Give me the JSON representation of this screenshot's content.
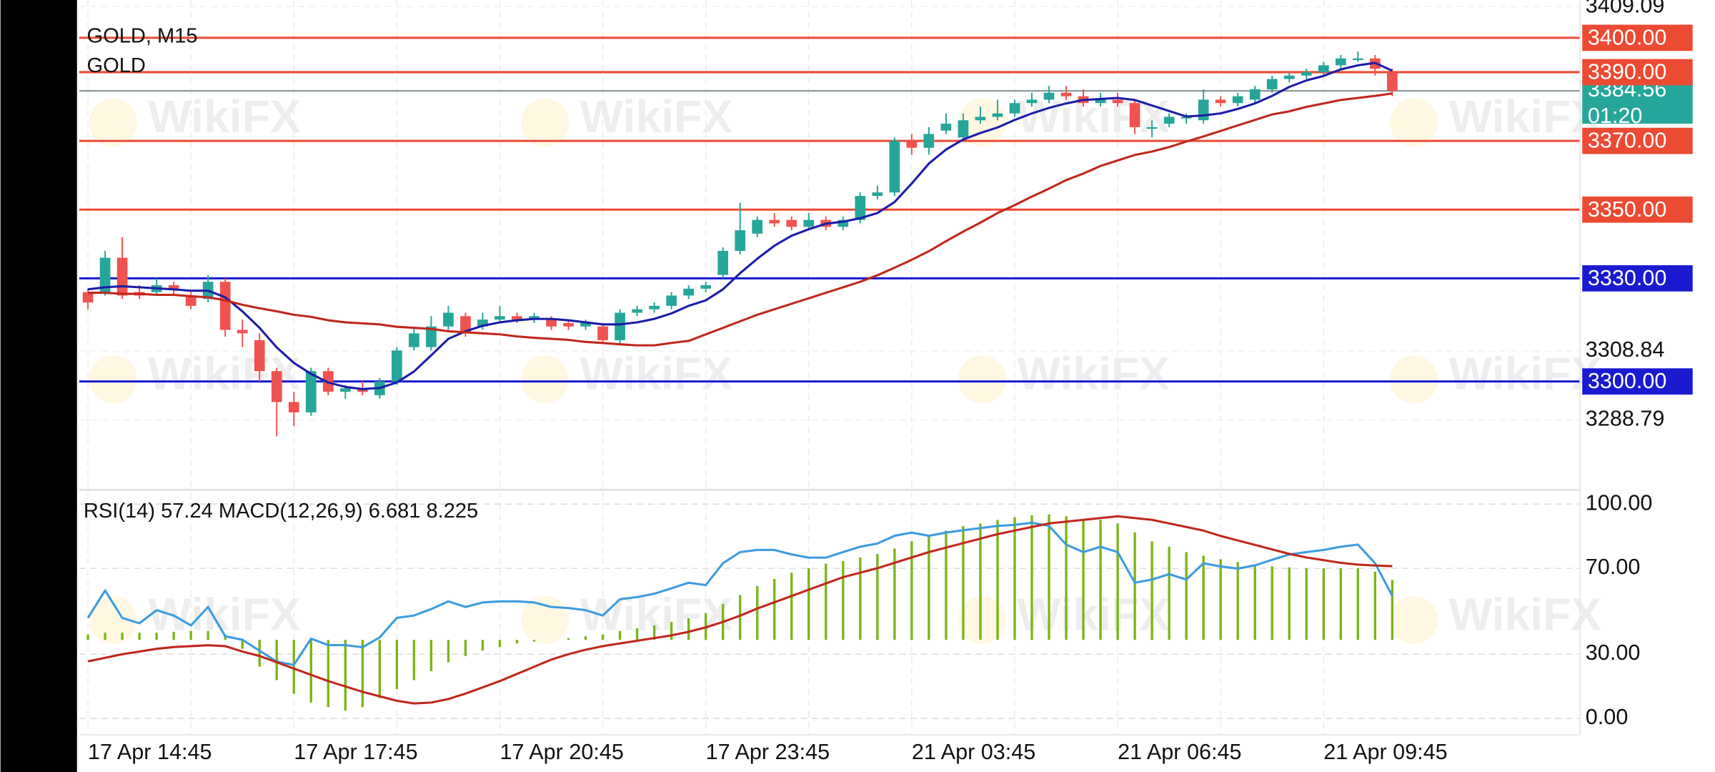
{
  "chart_data": [
    {
      "type": "candlestick",
      "title": "GOLD, M15",
      "subtitle": "GOLD",
      "watermark": "WikiFX",
      "categories": [
        "17 Apr 14:45",
        null,
        null,
        null,
        null,
        null,
        null,
        null,
        null,
        null,
        null,
        null,
        "17 Apr 17:45",
        null,
        null,
        null,
        null,
        null,
        null,
        null,
        null,
        null,
        null,
        null,
        "17 Apr 20:45",
        null,
        null,
        null,
        null,
        null,
        null,
        null,
        null,
        null,
        null,
        null,
        "17 Apr 23:45",
        null,
        null,
        null,
        null,
        null,
        null,
        null,
        null,
        null,
        null,
        null,
        "21 Apr 03:45",
        null,
        null,
        null,
        null,
        null,
        null,
        null,
        null,
        null,
        null,
        null,
        "21 Apr 06:45",
        null,
        null,
        null,
        null,
        null,
        null,
        null,
        null,
        null,
        null,
        null,
        "21 Apr 09:45",
        null,
        null,
        null,
        null
      ],
      "open": [
        3326,
        3326,
        3336,
        3326,
        3326,
        3328,
        3325,
        3324,
        3329,
        3315,
        3312,
        3303,
        3294,
        3291,
        3303,
        3297,
        3298,
        3296,
        3300,
        3310,
        3310,
        3316,
        3319,
        3316,
        3318,
        3319,
        3318,
        3318,
        3317,
        3316,
        3316,
        3312,
        3320,
        3321,
        3322,
        3325,
        3327,
        3331,
        3338,
        3343,
        3347,
        3347,
        3345,
        3347,
        3345,
        3347,
        3354,
        3355,
        3370,
        3368,
        3373,
        3371,
        3376,
        3377,
        3378,
        3381,
        3382,
        3384,
        3383,
        3381,
        3382,
        3381,
        3374,
        3375,
        3377,
        3376,
        3382,
        3381,
        3382,
        3385,
        3388,
        3389,
        3390,
        3392,
        3394,
        3394,
        3390
      ],
      "high": [
        3327,
        3338,
        3342,
        3328,
        3330,
        3329,
        3326,
        3331,
        3330,
        3318,
        3314,
        3304,
        3297,
        3304,
        3304,
        3299,
        3300,
        3301,
        3310,
        3316,
        3319,
        3322,
        3320,
        3320,
        3322,
        3320,
        3320,
        3319,
        3318,
        3318,
        3317,
        3321,
        3322,
        3323,
        3326,
        3328,
        3329,
        3339,
        3352,
        3348,
        3349,
        3348,
        3349,
        3348,
        3348,
        3355,
        3357,
        3371,
        3372,
        3374,
        3378,
        3378,
        3380,
        3382,
        3382,
        3384,
        3386,
        3386,
        3385,
        3384,
        3384,
        3382,
        3376,
        3378,
        3378,
        3385,
        3383,
        3384,
        3386,
        3389,
        3390,
        3391,
        3393,
        3395,
        3396,
        3395,
        3391
      ],
      "low": [
        3321,
        3325,
        3324,
        3324,
        3325,
        3325,
        3321,
        3323,
        3313,
        3310,
        3300,
        3284,
        3287,
        3290,
        3296,
        3295,
        3296,
        3295,
        3299,
        3309,
        3309,
        3315,
        3313,
        3315,
        3317,
        3317,
        3317,
        3315,
        3315,
        3315,
        3311,
        3311,
        3319,
        3320,
        3321,
        3324,
        3326,
        3330,
        3337,
        3342,
        3345,
        3344,
        3344,
        3344,
        3344,
        3346,
        3353,
        3354,
        3366,
        3366,
        3372,
        3370,
        3375,
        3376,
        3377,
        3380,
        3381,
        3382,
        3380,
        3380,
        3380,
        3372,
        3371,
        3374,
        3375,
        3375,
        3380,
        3380,
        3381,
        3384,
        3387,
        3388,
        3389,
        3391,
        3393,
        3389,
        3383
      ],
      "close": [
        3323,
        3336,
        3325,
        3325,
        3328,
        3327,
        3322,
        3329,
        3315,
        3314,
        3303,
        3294,
        3291,
        3303,
        3297,
        3298,
        3297,
        3300,
        3309,
        3314,
        3316,
        3320,
        3314,
        3318,
        3319,
        3318,
        3319,
        3316,
        3316,
        3317,
        3312,
        3320,
        3321,
        3322,
        3325,
        3327,
        3328,
        3338,
        3344,
        3347,
        3346,
        3345,
        3347,
        3345,
        3347,
        3354,
        3355,
        3370,
        3368,
        3372,
        3375,
        3376,
        3377,
        3378,
        3381,
        3382,
        3384,
        3383,
        3381,
        3382,
        3381,
        3374,
        3374,
        3377,
        3377,
        3382,
        3381,
        3383,
        3385,
        3388,
        3389,
        3390,
        3392,
        3394,
        3394,
        3391,
        3384.56
      ],
      "up_color": "#26a69a",
      "down_color": "#ef5350",
      "series": [
        {
          "type": "line",
          "color": "#1c1ca8",
          "values": [
            3326.8,
            3327.4,
            3327.7,
            3327.4,
            3327.1,
            3326.8,
            3326.4,
            3326.4,
            3324.5,
            3320.4,
            3315.6,
            3309.9,
            3305.4,
            3302.2,
            3299.7,
            3298.4,
            3297.8,
            3298.1,
            3299.7,
            3302.9,
            3307.6,
            3312.4,
            3314.6,
            3316.2,
            3317.2,
            3317.8,
            3318.2,
            3318.2,
            3317.8,
            3317.2,
            3316.6,
            3316.6,
            3317.2,
            3318.2,
            3319.8,
            3322.0,
            3323.6,
            3326.8,
            3331.5,
            3335.7,
            3339.5,
            3342.4,
            3344.3,
            3345.9,
            3346.5,
            3347.5,
            3349.0,
            3352.2,
            3357.6,
            3363.4,
            3367.5,
            3370.4,
            3372.3,
            3373.9,
            3376.1,
            3378.0,
            3379.6,
            3380.9,
            3381.9,
            3382.2,
            3382.5,
            3381.9,
            3380.3,
            3378.7,
            3377.1,
            3377.4,
            3378.0,
            3379.3,
            3380.9,
            3383.1,
            3385.7,
            3387.6,
            3388.9,
            3390.8,
            3392.0,
            3392.7,
            3390.4
          ]
        },
        {
          "type": "line",
          "color": "#c0271b",
          "values": [
            3325.8,
            3325.8,
            3325.5,
            3325.5,
            3325.2,
            3325.2,
            3324.8,
            3324.5,
            3323.6,
            3322.3,
            3321.3,
            3320.4,
            3319.4,
            3318.8,
            3317.8,
            3317.2,
            3316.9,
            3316.6,
            3315.9,
            3315.6,
            3315.3,
            3314.6,
            3314.3,
            3314.0,
            3313.7,
            3313.1,
            3312.7,
            3312.4,
            3312.1,
            3311.5,
            3311.2,
            3310.8,
            3310.5,
            3310.5,
            3311.2,
            3311.8,
            3313.7,
            3315.6,
            3317.5,
            3319.4,
            3321.0,
            3322.6,
            3324.2,
            3325.8,
            3327.4,
            3329.0,
            3330.9,
            3333.1,
            3335.4,
            3337.9,
            3340.8,
            3343.6,
            3346.2,
            3349.0,
            3351.3,
            3353.8,
            3356.1,
            3358.6,
            3360.5,
            3362.7,
            3364.3,
            3365.9,
            3366.9,
            3368.2,
            3369.8,
            3371.3,
            3372.9,
            3374.5,
            3376.1,
            3377.7,
            3378.6,
            3379.9,
            3380.9,
            3381.9,
            3382.5,
            3383.1,
            3383.8
          ]
        }
      ],
      "levels": [
        {
          "value": 3400,
          "label": "3400.00",
          "color": "#ec4a33"
        },
        {
          "value": 3390,
          "label": "3390.00",
          "color": "#ec4a33"
        },
        {
          "value": 3370,
          "label": "3370.00",
          "color": "#ec4a33"
        },
        {
          "value": 3350,
          "label": "3350.00",
          "color": "#ec4a33"
        },
        {
          "value": 3330,
          "label": "3330.00",
          "color": "#1a1ad0"
        },
        {
          "value": 3300,
          "label": "3300.00",
          "color": "#1a1ad0"
        }
      ],
      "countdown": "01:20",
      "last_color": "#26a69a",
      "ylim": [
        3269.4,
        3411
      ],
      "yticks": [
        3409.09,
        3308.84,
        3288.79
      ],
      "grid": true
    },
    {
      "type": "line",
      "ylim": [
        -7.65,
        105.6
      ],
      "yticks": [
        {
          "value": 100,
          "label": "100.00"
        },
        {
          "value": 70,
          "label": "70.00"
        },
        {
          "value": 30,
          "label": "30.00"
        },
        {
          "value": 0,
          "label": "0.00"
        }
      ],
      "y2lim": [
        -10.6,
        16.5
      ],
      "grid": true,
      "series": [
        {
          "name": "RSI(14)",
          "type": "line",
          "color": "#3d9be0",
          "values": [
            46.9,
            59.7,
            46.9,
            44.4,
            50.5,
            48.0,
            43.4,
            52.0,
            38.3,
            36.7,
            31.6,
            26.5,
            25.0,
            37.2,
            34.2,
            34.2,
            33.2,
            37.8,
            46.9,
            48.0,
            51.0,
            54.6,
            52.0,
            54.1,
            54.6,
            54.6,
            54.1,
            52.0,
            51.5,
            50.5,
            48.0,
            55.6,
            56.6,
            58.2,
            60.7,
            63.3,
            62.2,
            72.4,
            77.6,
            78.6,
            78.6,
            76.5,
            75.0,
            75.0,
            77.6,
            80.1,
            81.6,
            85.2,
            86.7,
            85.2,
            86.7,
            87.8,
            88.8,
            89.8,
            90.3,
            91.3,
            89.8,
            81.1,
            77.6,
            80.1,
            77.6,
            63.3,
            64.8,
            67.3,
            64.8,
            72.4,
            70.9,
            69.9,
            71.4,
            74.0,
            76.5,
            77.6,
            78.6,
            80.1,
            81.1,
            72.4,
            57.24
          ]
        },
        {
          "name": "MACD(12,26,9)",
          "type": "bar",
          "axis": "y2",
          "color": "#7cb518",
          "values": [
            0.6,
            0.8,
            0.8,
            0.8,
            0.8,
            0.9,
            1.0,
            1.0,
            0.6,
            -1.0,
            -3.0,
            -4.5,
            -6.0,
            -7.0,
            -7.5,
            -7.9,
            -7.5,
            -6.5,
            -5.5,
            -4.5,
            -3.5,
            -2.5,
            -1.8,
            -1.2,
            -0.8,
            -0.4,
            -0.2,
            0,
            0.2,
            0.4,
            0.6,
            1.0,
            1.3,
            1.6,
            2.0,
            2.4,
            3.0,
            4.0,
            5.0,
            6.0,
            6.8,
            7.5,
            8.0,
            8.5,
            8.8,
            9.2,
            9.6,
            10.2,
            11.0,
            11.6,
            12.2,
            12.7,
            13.0,
            13.4,
            13.7,
            13.9,
            14.0,
            13.8,
            13.5,
            13.4,
            13.0,
            12.0,
            11.0,
            10.4,
            9.8,
            9.4,
            9.0,
            8.7,
            8.4,
            8.2,
            8.1,
            8.0,
            8.0,
            8.0,
            8.0,
            7.6,
            6.681
          ]
        },
        {
          "type": "line",
          "axis": "y2",
          "color": "#c0271b",
          "values": [
            -2.4,
            -2.0,
            -1.6,
            -1.3,
            -1.0,
            -0.8,
            -0.7,
            -0.6,
            -0.7,
            -1.3,
            -1.8,
            -2.5,
            -3.2,
            -3.9,
            -4.6,
            -5.2,
            -5.8,
            -6.3,
            -6.8,
            -7.1,
            -7.0,
            -6.6,
            -6.0,
            -5.3,
            -4.6,
            -3.8,
            -3.0,
            -2.2,
            -1.6,
            -1.1,
            -0.7,
            -0.4,
            -0.1,
            0.2,
            0.5,
            0.9,
            1.4,
            2.0,
            2.7,
            3.5,
            4.2,
            4.9,
            5.6,
            6.3,
            7.0,
            7.5,
            8.0,
            8.6,
            9.2,
            9.8,
            10.3,
            10.8,
            11.3,
            11.8,
            12.2,
            12.6,
            13.0,
            13.2,
            13.4,
            13.6,
            13.8,
            13.6,
            13.4,
            13.0,
            12.6,
            12.2,
            11.6,
            11.1,
            10.6,
            10.1,
            9.6,
            9.2,
            8.9,
            8.6,
            8.4,
            8.3,
            8.225
          ]
        }
      ]
    }
  ]
}
